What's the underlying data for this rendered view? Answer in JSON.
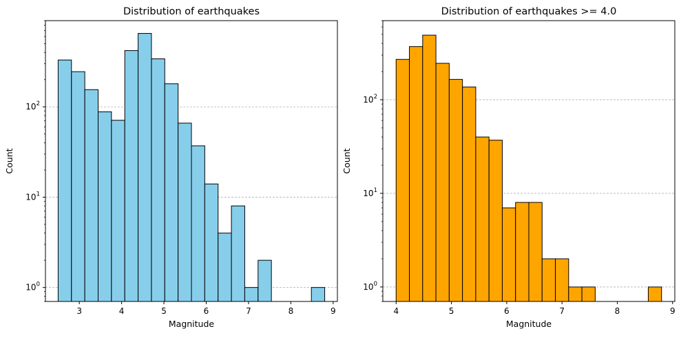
{
  "chart_data": [
    {
      "type": "bar",
      "title": "Distribution of earthquakes",
      "xlabel": "Magnitude",
      "ylabel": "Count",
      "yscale": "log",
      "grid": "y-dashed",
      "bar_color": "#87ceeb",
      "edge_color": "#000000",
      "xlim": [
        2.2,
        9.1
      ],
      "ylim": [
        0.7,
        900
      ],
      "xticks": [
        3,
        4,
        5,
        6,
        7,
        8,
        9
      ],
      "yticks": [
        {
          "value": 1,
          "base": "10",
          "exp": "0"
        },
        {
          "value": 10,
          "base": "10",
          "exp": "1"
        },
        {
          "value": 100,
          "base": "10",
          "exp": "2"
        }
      ],
      "bins": [
        {
          "x0": 2.5,
          "x1": 2.815,
          "count": 330
        },
        {
          "x0": 2.815,
          "x1": 3.13,
          "count": 245
        },
        {
          "x0": 3.13,
          "x1": 3.445,
          "count": 155
        },
        {
          "x0": 3.445,
          "x1": 3.76,
          "count": 88
        },
        {
          "x0": 3.76,
          "x1": 4.075,
          "count": 71
        },
        {
          "x0": 4.075,
          "x1": 4.39,
          "count": 420
        },
        {
          "x0": 4.39,
          "x1": 4.705,
          "count": 650
        },
        {
          "x0": 4.705,
          "x1": 5.02,
          "count": 340
        },
        {
          "x0": 5.02,
          "x1": 5.335,
          "count": 180
        },
        {
          "x0": 5.335,
          "x1": 5.65,
          "count": 66
        },
        {
          "x0": 5.65,
          "x1": 5.965,
          "count": 37
        },
        {
          "x0": 5.965,
          "x1": 6.28,
          "count": 14
        },
        {
          "x0": 6.28,
          "x1": 6.595,
          "count": 4
        },
        {
          "x0": 6.595,
          "x1": 6.91,
          "count": 8
        },
        {
          "x0": 6.91,
          "x1": 7.225,
          "count": 1
        },
        {
          "x0": 7.225,
          "x1": 7.54,
          "count": 2
        },
        {
          "x0": 8.485,
          "x1": 8.8,
          "count": 1
        }
      ]
    },
    {
      "type": "bar",
      "title": "Distribution of earthquakes >= 4.0",
      "xlabel": "Magnitude",
      "ylabel": "Count",
      "yscale": "log",
      "grid": "y-dashed",
      "bar_color": "#ffa500",
      "edge_color": "#000000",
      "xlim": [
        3.76,
        9.04
      ],
      "ylim": [
        0.7,
        700
      ],
      "xticks": [
        4,
        5,
        6,
        7,
        8,
        9
      ],
      "yticks": [
        {
          "value": 1,
          "base": "10",
          "exp": "0"
        },
        {
          "value": 10,
          "base": "10",
          "exp": "1"
        },
        {
          "value": 100,
          "base": "10",
          "exp": "2"
        }
      ],
      "bins": [
        {
          "x0": 4.0,
          "x1": 4.24,
          "count": 270
        },
        {
          "x0": 4.24,
          "x1": 4.48,
          "count": 370
        },
        {
          "x0": 4.48,
          "x1": 4.72,
          "count": 490
        },
        {
          "x0": 4.72,
          "x1": 4.96,
          "count": 245
        },
        {
          "x0": 4.96,
          "x1": 5.2,
          "count": 165
        },
        {
          "x0": 5.2,
          "x1": 5.44,
          "count": 137
        },
        {
          "x0": 5.44,
          "x1": 5.68,
          "count": 40
        },
        {
          "x0": 5.68,
          "x1": 5.92,
          "count": 37
        },
        {
          "x0": 5.92,
          "x1": 6.16,
          "count": 7
        },
        {
          "x0": 6.16,
          "x1": 6.4,
          "count": 8
        },
        {
          "x0": 6.4,
          "x1": 6.64,
          "count": 8
        },
        {
          "x0": 6.64,
          "x1": 6.88,
          "count": 2
        },
        {
          "x0": 6.88,
          "x1": 7.12,
          "count": 2
        },
        {
          "x0": 7.12,
          "x1": 7.36,
          "count": 1
        },
        {
          "x0": 7.36,
          "x1": 7.6,
          "count": 1
        },
        {
          "x0": 8.56,
          "x1": 8.8,
          "count": 1
        }
      ]
    }
  ]
}
